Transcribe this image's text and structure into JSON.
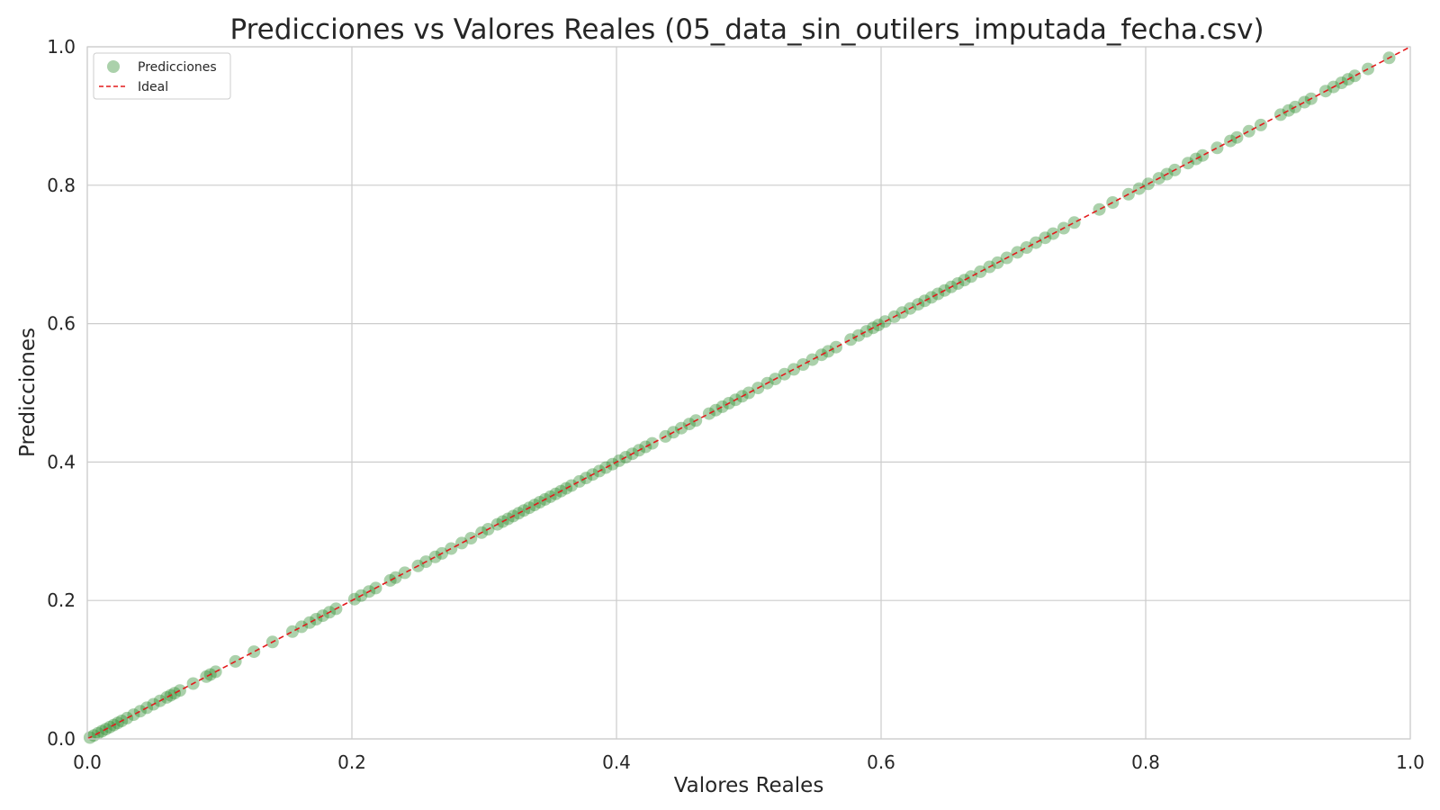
{
  "chart_data": {
    "type": "scatter",
    "title": "Predicciones vs Valores Reales (05_data_sin_outilers_imputada_fecha.csv)",
    "xlabel": "Valores Reales",
    "ylabel": "Predicciones",
    "xlim": [
      0.0,
      1.0
    ],
    "ylim": [
      0.0,
      1.0
    ],
    "xticks": [
      "0.0",
      "0.2",
      "0.4",
      "0.6",
      "0.8",
      "1.0"
    ],
    "yticks": [
      "0.0",
      "0.2",
      "0.4",
      "0.6",
      "0.8",
      "1.0"
    ],
    "grid": true,
    "legend": {
      "placement": "top-left",
      "entries": [
        {
          "label": "Predicciones",
          "kind": "marker"
        },
        {
          "label": "Ideal",
          "kind": "dashed-line"
        }
      ]
    },
    "colors": {
      "points": "#2e8b2e",
      "ideal": "#e31a1c",
      "grid": "#cccccc",
      "axes_edge": "#cccccc"
    },
    "series": [
      {
        "name": "Predicciones",
        "points": [
          [
            0.002,
            0.002
          ],
          [
            0.005,
            0.005
          ],
          [
            0.008,
            0.008
          ],
          [
            0.011,
            0.011
          ],
          [
            0.014,
            0.014
          ],
          [
            0.017,
            0.017
          ],
          [
            0.02,
            0.02
          ],
          [
            0.023,
            0.023
          ],
          [
            0.026,
            0.026
          ],
          [
            0.03,
            0.03
          ],
          [
            0.035,
            0.035
          ],
          [
            0.04,
            0.04
          ],
          [
            0.045,
            0.045
          ],
          [
            0.05,
            0.05
          ],
          [
            0.055,
            0.055
          ],
          [
            0.06,
            0.06
          ],
          [
            0.063,
            0.063
          ],
          [
            0.066,
            0.066
          ],
          [
            0.07,
            0.07
          ],
          [
            0.08,
            0.08
          ],
          [
            0.09,
            0.09
          ],
          [
            0.093,
            0.093
          ],
          [
            0.097,
            0.097
          ],
          [
            0.112,
            0.112
          ],
          [
            0.126,
            0.126
          ],
          [
            0.14,
            0.14
          ],
          [
            0.155,
            0.155
          ],
          [
            0.162,
            0.162
          ],
          [
            0.168,
            0.168
          ],
          [
            0.173,
            0.173
          ],
          [
            0.178,
            0.178
          ],
          [
            0.183,
            0.183
          ],
          [
            0.188,
            0.188
          ],
          [
            0.202,
            0.202
          ],
          [
            0.207,
            0.207
          ],
          [
            0.213,
            0.213
          ],
          [
            0.218,
            0.218
          ],
          [
            0.229,
            0.229
          ],
          [
            0.233,
            0.233
          ],
          [
            0.24,
            0.24
          ],
          [
            0.25,
            0.25
          ],
          [
            0.256,
            0.256
          ],
          [
            0.263,
            0.263
          ],
          [
            0.268,
            0.268
          ],
          [
            0.275,
            0.275
          ],
          [
            0.283,
            0.283
          ],
          [
            0.29,
            0.29
          ],
          [
            0.298,
            0.298
          ],
          [
            0.303,
            0.303
          ],
          [
            0.31,
            0.31
          ],
          [
            0.314,
            0.314
          ],
          [
            0.318,
            0.318
          ],
          [
            0.322,
            0.322
          ],
          [
            0.326,
            0.326
          ],
          [
            0.33,
            0.33
          ],
          [
            0.334,
            0.334
          ],
          [
            0.338,
            0.338
          ],
          [
            0.342,
            0.342
          ],
          [
            0.346,
            0.346
          ],
          [
            0.35,
            0.35
          ],
          [
            0.354,
            0.354
          ],
          [
            0.358,
            0.358
          ],
          [
            0.362,
            0.362
          ],
          [
            0.366,
            0.366
          ],
          [
            0.372,
            0.372
          ],
          [
            0.377,
            0.377
          ],
          [
            0.382,
            0.382
          ],
          [
            0.387,
            0.387
          ],
          [
            0.392,
            0.392
          ],
          [
            0.397,
            0.397
          ],
          [
            0.402,
            0.402
          ],
          [
            0.407,
            0.407
          ],
          [
            0.412,
            0.412
          ],
          [
            0.417,
            0.417
          ],
          [
            0.422,
            0.422
          ],
          [
            0.427,
            0.427
          ],
          [
            0.437,
            0.437
          ],
          [
            0.443,
            0.443
          ],
          [
            0.449,
            0.449
          ],
          [
            0.455,
            0.455
          ],
          [
            0.46,
            0.46
          ],
          [
            0.47,
            0.47
          ],
          [
            0.475,
            0.475
          ],
          [
            0.48,
            0.48
          ],
          [
            0.485,
            0.485
          ],
          [
            0.49,
            0.49
          ],
          [
            0.495,
            0.495
          ],
          [
            0.5,
            0.5
          ],
          [
            0.507,
            0.507
          ],
          [
            0.514,
            0.514
          ],
          [
            0.52,
            0.52
          ],
          [
            0.527,
            0.527
          ],
          [
            0.534,
            0.534
          ],
          [
            0.541,
            0.541
          ],
          [
            0.548,
            0.548
          ],
          [
            0.555,
            0.555
          ],
          [
            0.56,
            0.56
          ],
          [
            0.566,
            0.566
          ],
          [
            0.577,
            0.577
          ],
          [
            0.583,
            0.583
          ],
          [
            0.589,
            0.589
          ],
          [
            0.594,
            0.594
          ],
          [
            0.598,
            0.598
          ],
          [
            0.603,
            0.603
          ],
          [
            0.61,
            0.61
          ],
          [
            0.616,
            0.616
          ],
          [
            0.622,
            0.622
          ],
          [
            0.628,
            0.628
          ],
          [
            0.633,
            0.633
          ],
          [
            0.638,
            0.638
          ],
          [
            0.643,
            0.643
          ],
          [
            0.648,
            0.648
          ],
          [
            0.653,
            0.653
          ],
          [
            0.658,
            0.658
          ],
          [
            0.663,
            0.663
          ],
          [
            0.668,
            0.668
          ],
          [
            0.675,
            0.675
          ],
          [
            0.682,
            0.682
          ],
          [
            0.688,
            0.688
          ],
          [
            0.695,
            0.695
          ],
          [
            0.703,
            0.703
          ],
          [
            0.71,
            0.71
          ],
          [
            0.717,
            0.717
          ],
          [
            0.724,
            0.724
          ],
          [
            0.73,
            0.73
          ],
          [
            0.738,
            0.738
          ],
          [
            0.746,
            0.746
          ],
          [
            0.765,
            0.765
          ],
          [
            0.775,
            0.775
          ],
          [
            0.787,
            0.787
          ],
          [
            0.795,
            0.795
          ],
          [
            0.802,
            0.802
          ],
          [
            0.81,
            0.81
          ],
          [
            0.816,
            0.816
          ],
          [
            0.822,
            0.822
          ],
          [
            0.832,
            0.832
          ],
          [
            0.838,
            0.838
          ],
          [
            0.843,
            0.843
          ],
          [
            0.854,
            0.854
          ],
          [
            0.864,
            0.864
          ],
          [
            0.869,
            0.869
          ],
          [
            0.878,
            0.878
          ],
          [
            0.887,
            0.887
          ],
          [
            0.902,
            0.902
          ],
          [
            0.908,
            0.908
          ],
          [
            0.913,
            0.913
          ],
          [
            0.92,
            0.92
          ],
          [
            0.925,
            0.925
          ],
          [
            0.936,
            0.936
          ],
          [
            0.942,
            0.942
          ],
          [
            0.948,
            0.948
          ],
          [
            0.953,
            0.953
          ],
          [
            0.958,
            0.958
          ],
          [
            0.968,
            0.968
          ],
          [
            0.984,
            0.984
          ]
        ]
      },
      {
        "name": "Ideal",
        "line": [
          [
            0.0,
            0.0
          ],
          [
            1.0,
            1.0
          ]
        ]
      }
    ]
  }
}
